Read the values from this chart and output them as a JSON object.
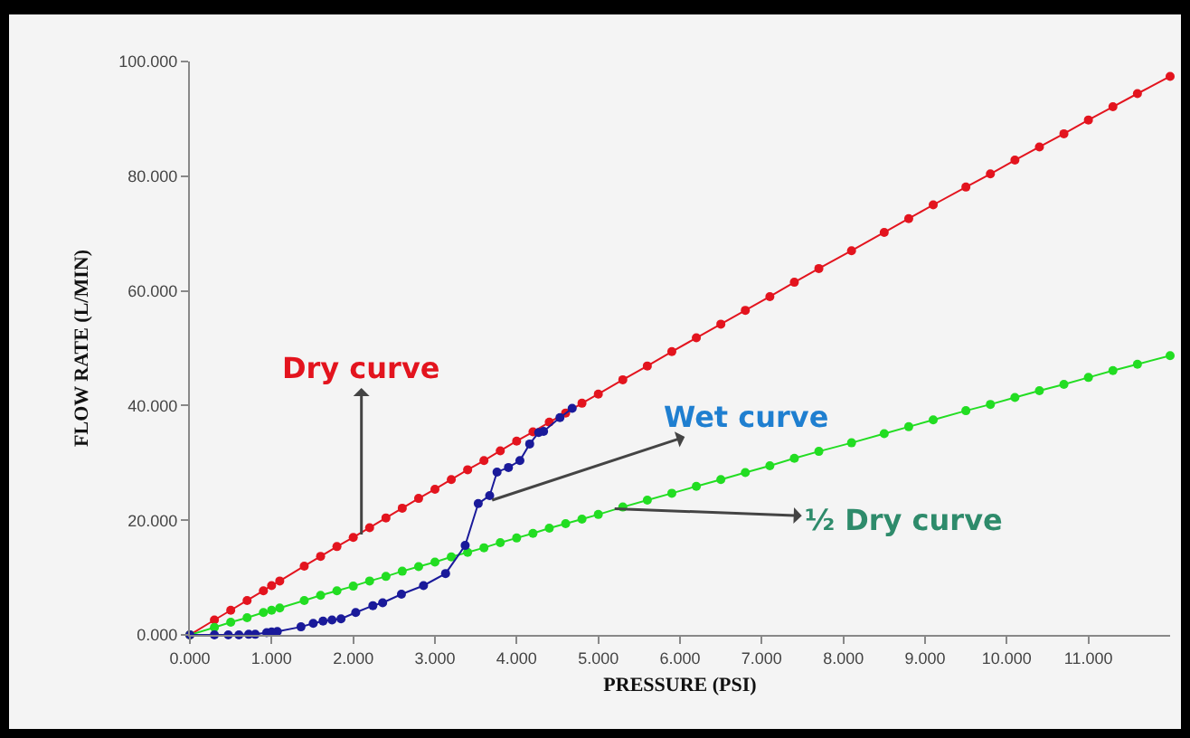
{
  "chart_data": {
    "type": "line",
    "xlabel": "PRESSURE (PSI)",
    "ylabel": "FLOW RATE (L/MIN)",
    "xlim": [
      0,
      12
    ],
    "ylim": [
      0,
      100
    ],
    "xticks": [
      {
        "value": 0,
        "label": "0.000"
      },
      {
        "value": 1,
        "label": "1.000"
      },
      {
        "value": 2,
        "label": "2.000"
      },
      {
        "value": 3,
        "label": "3.000"
      },
      {
        "value": 4,
        "label": "4.000"
      },
      {
        "value": 5,
        "label": "5.000"
      },
      {
        "value": 6,
        "label": "6.000"
      },
      {
        "value": 7,
        "label": "7.000"
      },
      {
        "value": 8,
        "label": "8.000"
      },
      {
        "value": 9,
        "label": "9.000"
      },
      {
        "value": 10,
        "label": "10.000"
      },
      {
        "value": 11,
        "label": "11.000"
      }
    ],
    "yticks": [
      {
        "value": 0,
        "label": "0.000"
      },
      {
        "value": 20,
        "label": "20.000"
      },
      {
        "value": 40,
        "label": "40.000"
      },
      {
        "value": 60,
        "label": "60.000"
      },
      {
        "value": 80,
        "label": "80.000"
      },
      {
        "value": 100,
        "label": "100.000"
      }
    ],
    "grid": false,
    "marker": "circle",
    "line_style": "solid",
    "series": [
      {
        "color": "#e3141e",
        "x": [
          0,
          0.3,
          0.5,
          0.7,
          0.9,
          1.0,
          1.1,
          1.4,
          1.6,
          1.8,
          2.0,
          2.2,
          2.4,
          2.6,
          2.8,
          3.0,
          3.2,
          3.4,
          3.6,
          3.8,
          4.0,
          4.2,
          4.4,
          4.6,
          4.8,
          5.0,
          5.3,
          5.6,
          5.9,
          6.2,
          6.5,
          6.8,
          7.1,
          7.4,
          7.7,
          8.1,
          8.5,
          8.8,
          9.1,
          9.5,
          9.8,
          10.1,
          10.4,
          10.7,
          11.0,
          11.3,
          11.6,
          12.0
        ],
        "values": [
          0,
          2.6,
          4.3,
          6.0,
          7.7,
          8.6,
          9.4,
          12.0,
          13.7,
          15.4,
          17.0,
          18.7,
          20.4,
          22.1,
          23.8,
          25.4,
          27.1,
          28.8,
          30.4,
          32.1,
          33.8,
          35.4,
          37.1,
          38.7,
          40.4,
          42.0,
          44.5,
          46.9,
          49.4,
          51.8,
          54.2,
          56.6,
          59.0,
          61.5,
          63.9,
          67.0,
          70.2,
          72.6,
          75.0,
          78.1,
          80.4,
          82.8,
          85.1,
          87.4,
          89.8,
          92.1,
          94.4,
          97.4
        ]
      },
      {
        "color": "#22dd22",
        "x": [
          0,
          0.3,
          0.5,
          0.7,
          0.9,
          1.0,
          1.1,
          1.4,
          1.6,
          1.8,
          2.0,
          2.2,
          2.4,
          2.6,
          2.8,
          3.0,
          3.2,
          3.4,
          3.6,
          3.8,
          4.0,
          4.2,
          4.4,
          4.6,
          4.8,
          5.0,
          5.3,
          5.6,
          5.9,
          6.2,
          6.5,
          6.8,
          7.1,
          7.4,
          7.7,
          8.1,
          8.5,
          8.8,
          9.1,
          9.5,
          9.8,
          10.1,
          10.4,
          10.7,
          11.0,
          11.3,
          11.6,
          12.0
        ],
        "values": [
          0,
          1.3,
          2.2,
          3.0,
          3.9,
          4.3,
          4.7,
          6.0,
          6.9,
          7.7,
          8.5,
          9.4,
          10.2,
          11.1,
          11.9,
          12.7,
          13.6,
          14.4,
          15.2,
          16.1,
          16.9,
          17.7,
          18.6,
          19.4,
          20.2,
          21.0,
          22.3,
          23.5,
          24.7,
          25.9,
          27.1,
          28.3,
          29.5,
          30.8,
          32.0,
          33.5,
          35.1,
          36.3,
          37.5,
          39.1,
          40.2,
          41.4,
          42.6,
          43.7,
          44.9,
          46.1,
          47.2,
          48.7
        ]
      },
      {
        "color": "#1a1a9a",
        "x": [
          0,
          0.3,
          0.47,
          0.6,
          0.72,
          0.8,
          0.94,
          1.0,
          1.07,
          1.36,
          1.51,
          1.63,
          1.74,
          1.85,
          2.03,
          2.24,
          2.36,
          2.59,
          2.86,
          3.13,
          3.37,
          3.53,
          3.67,
          3.76,
          3.9,
          4.04,
          4.16,
          4.27,
          4.33,
          4.53,
          4.68
        ],
        "values": [
          0,
          0,
          0,
          0,
          0.1,
          0.1,
          0.4,
          0.5,
          0.6,
          1.4,
          2.0,
          2.4,
          2.6,
          2.8,
          3.9,
          5.1,
          5.6,
          7.1,
          8.6,
          10.7,
          15.6,
          22.9,
          24.3,
          28.4,
          29.2,
          30.4,
          33.3,
          35.3,
          35.5,
          37.9,
          39.5
        ]
      }
    ],
    "annotations": [
      {
        "text": "Dry curve",
        "x": 2.1,
        "y": 17.5
      },
      {
        "text": "Wet curve",
        "x": 3.7,
        "y": 23.5
      },
      {
        "text": "½ Dry curve",
        "x": 5.2,
        "y": 22.0
      }
    ]
  }
}
